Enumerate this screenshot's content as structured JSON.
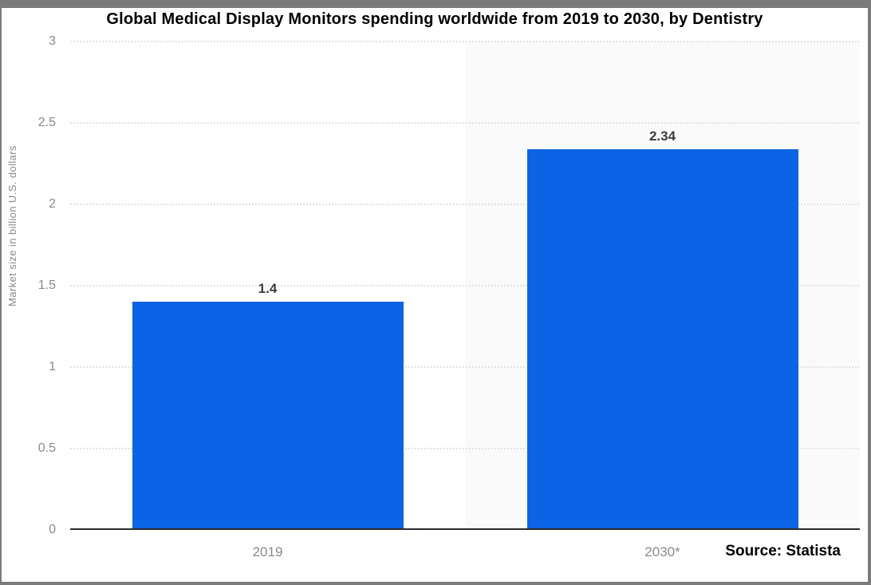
{
  "chart_data": {
    "type": "bar",
    "title": "Global Medical Display Monitors spending worldwide from 2019 to 2030, by Dentistry",
    "categories": [
      "2019",
      "2030*"
    ],
    "values": [
      1.4,
      2.34
    ],
    "value_labels": [
      "1.4",
      "2.34"
    ],
    "xlabel": "",
    "ylabel": "Market size in billion U.S. dollars",
    "ylim": [
      0,
      3
    ],
    "yticks": [
      "0",
      "0.5",
      "1",
      "1.5",
      "2",
      "2.5",
      "3"
    ],
    "grid": "horizontal-dotted",
    "legend": "none",
    "source": "Source: Statista",
    "highlight_band_category": "2030*",
    "colors": {
      "bar": "#0b64e6",
      "band": "#fafafa",
      "grid": "#e2e2e2",
      "axis_line": "#2b2b2b",
      "tick_label": "#898989",
      "category_label": "#8a8a8a",
      "value_label": "#3d3d3d",
      "title": "#000000",
      "source": "#000000",
      "frame_border": "#7b7b7b"
    }
  }
}
